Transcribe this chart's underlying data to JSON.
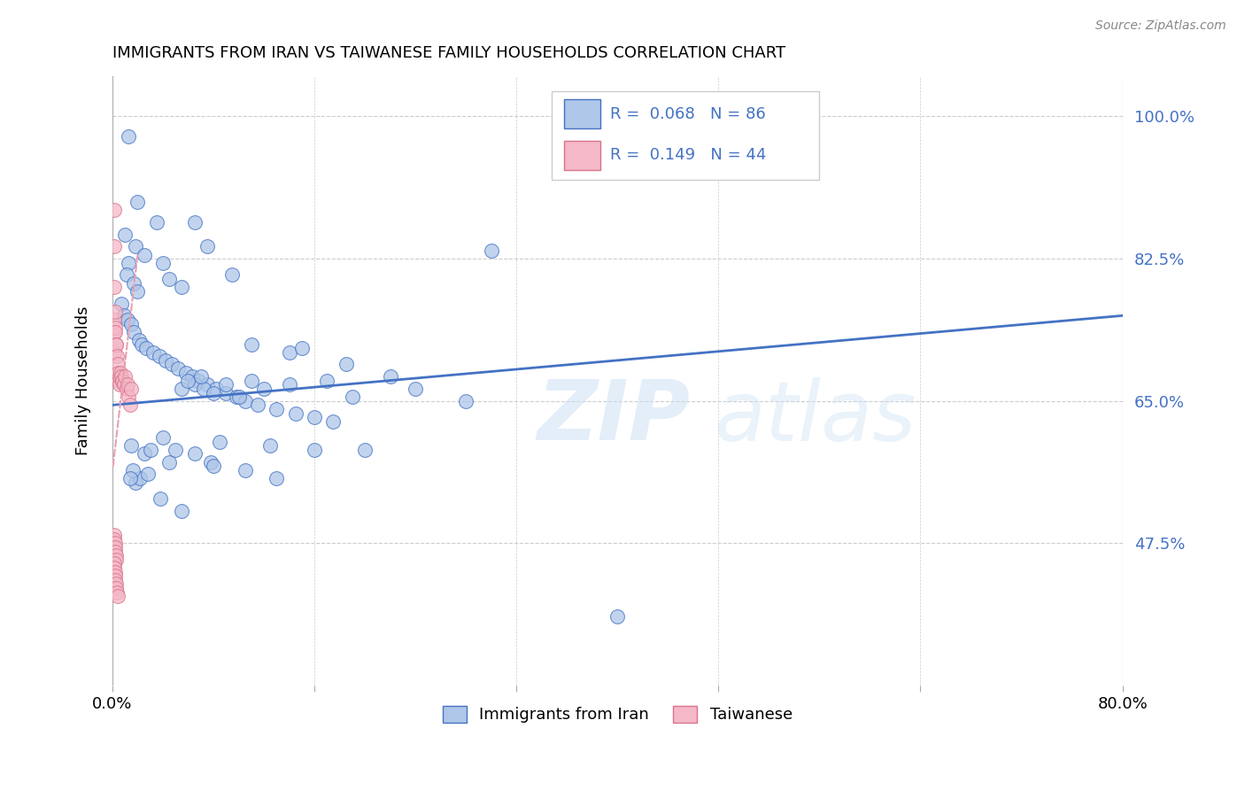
{
  "title": "IMMIGRANTS FROM IRAN VS TAIWANESE FAMILY HOUSEHOLDS CORRELATION CHART",
  "source": "Source: ZipAtlas.com",
  "xlabel": "",
  "ylabel": "Family Households",
  "watermark": "ZIPatlas",
  "xlim": [
    0.0,
    80.0
  ],
  "ylim": [
    30.0,
    105.0
  ],
  "yticks": [
    47.5,
    65.0,
    82.5,
    100.0
  ],
  "xticks": [
    0.0,
    16.0,
    32.0,
    48.0,
    64.0,
    80.0
  ],
  "xtick_labels": [
    "0.0%",
    "",
    "",
    "",
    "",
    "80.0%"
  ],
  "ytick_labels": [
    "47.5%",
    "65.0%",
    "82.5%",
    "100.0%"
  ],
  "legend_iran_R": "0.068",
  "legend_iran_N": "86",
  "legend_taiwan_R": "0.149",
  "legend_taiwan_N": "44",
  "iran_color": "#aec6e8",
  "taiwan_color": "#f4b8c8",
  "trend_iran_color": "#4472c4",
  "trend_taiwan_color": "#e8a0b0",
  "iran_trend_x0": 0.0,
  "iran_trend_y0": 64.5,
  "iran_trend_x1": 80.0,
  "iran_trend_y1": 75.5,
  "taiwan_trend_x0": 0.05,
  "taiwan_trend_y0": 57.0,
  "taiwan_trend_x1": 2.0,
  "taiwan_trend_y1": 83.0,
  "iran_points_x": [
    1.3,
    2.0,
    3.5,
    1.0,
    1.8,
    1.3,
    1.1,
    1.7,
    2.0,
    2.5,
    4.0,
    4.5,
    6.5,
    5.5,
    7.5,
    9.5,
    11.0,
    14.0,
    15.0,
    18.5,
    0.7,
    0.9,
    1.2,
    1.5,
    1.7,
    2.1,
    2.3,
    2.7,
    3.2,
    3.7,
    4.2,
    4.7,
    5.2,
    5.8,
    6.3,
    6.8,
    7.5,
    8.2,
    9.0,
    9.8,
    10.5,
    11.5,
    13.0,
    14.5,
    16.0,
    17.5,
    5.5,
    6.5,
    7.2,
    8.0,
    10.0,
    12.0,
    19.0,
    24.0,
    28.0,
    1.5,
    2.5,
    3.0,
    4.5,
    6.0,
    7.0,
    9.0,
    11.0,
    14.0,
    17.0,
    22.0,
    30.0,
    5.0,
    6.5,
    7.8,
    10.5,
    13.0,
    4.0,
    8.5,
    12.5,
    16.0,
    20.0,
    3.8,
    5.5,
    8.0,
    40.0,
    1.8,
    2.2,
    1.6,
    2.8,
    1.4
  ],
  "iran_points_y": [
    97.5,
    89.5,
    87.0,
    85.5,
    84.0,
    82.0,
    80.5,
    79.5,
    78.5,
    83.0,
    82.0,
    80.0,
    87.0,
    79.0,
    84.0,
    80.5,
    72.0,
    71.0,
    71.5,
    69.5,
    77.0,
    75.5,
    75.0,
    74.5,
    73.5,
    72.5,
    72.0,
    71.5,
    71.0,
    70.5,
    70.0,
    69.5,
    69.0,
    68.5,
    68.0,
    67.5,
    67.0,
    66.5,
    66.0,
    65.5,
    65.0,
    64.5,
    64.0,
    63.5,
    63.0,
    62.5,
    66.5,
    67.0,
    66.5,
    66.0,
    65.5,
    66.5,
    65.5,
    66.5,
    65.0,
    59.5,
    58.5,
    59.0,
    57.5,
    67.5,
    68.0,
    67.0,
    67.5,
    67.0,
    67.5,
    68.0,
    83.5,
    59.0,
    58.5,
    57.5,
    56.5,
    55.5,
    60.5,
    60.0,
    59.5,
    59.0,
    59.0,
    53.0,
    51.5,
    57.0,
    38.5,
    55.0,
    55.5,
    56.5,
    56.0,
    55.5
  ],
  "taiwan_points_x": [
    0.15,
    0.15,
    0.15,
    0.15,
    0.18,
    0.18,
    0.2,
    0.22,
    0.25,
    0.28,
    0.3,
    0.35,
    0.4,
    0.45,
    0.5,
    0.55,
    0.6,
    0.65,
    0.7,
    0.75,
    0.8,
    0.9,
    1.0,
    1.1,
    1.2,
    1.3,
    1.4,
    1.5,
    0.15,
    0.17,
    0.2,
    0.23,
    0.25,
    0.28,
    0.3,
    0.15,
    0.18,
    0.2,
    0.22,
    0.25,
    0.28,
    0.3,
    0.35,
    0.4
  ],
  "taiwan_points_y": [
    88.5,
    84.0,
    79.0,
    75.0,
    73.5,
    71.0,
    76.0,
    74.0,
    73.5,
    72.0,
    72.0,
    70.5,
    69.5,
    68.5,
    67.5,
    67.0,
    68.0,
    68.5,
    68.0,
    67.5,
    67.5,
    67.0,
    68.0,
    66.5,
    67.0,
    65.5,
    64.5,
    66.5,
    48.5,
    48.0,
    47.5,
    47.0,
    46.5,
    46.0,
    45.5,
    45.0,
    44.5,
    44.0,
    43.5,
    43.0,
    42.5,
    42.0,
    41.5,
    41.0
  ]
}
